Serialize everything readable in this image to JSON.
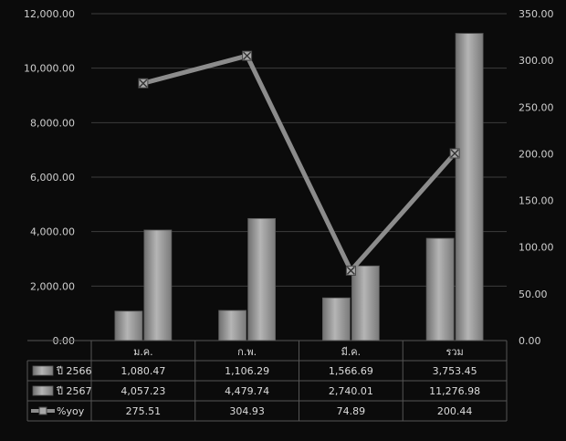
{
  "chart_data": {
    "type": "bar",
    "title": "",
    "categories": [
      "ม.ค.",
      "ก.พ.",
      "มี.ค.",
      "รวม"
    ],
    "y_left": {
      "ticks": [
        "0.00",
        "2,000.00",
        "4,000.00",
        "6,000.00",
        "8,000.00",
        "10,000.00",
        "12,000.00"
      ],
      "ylim": [
        0,
        12000
      ]
    },
    "y_right": {
      "ticks": [
        "0.00",
        "50.00",
        "100.00",
        "150.00",
        "200.00",
        "250.00",
        "300.00",
        "350.00"
      ],
      "ylim": [
        0,
        350
      ]
    },
    "grid": true,
    "series": [
      {
        "name": "ปี 2566",
        "type": "bar",
        "axis": "left",
        "values": [
          1080.47,
          1106.29,
          1566.69,
          3753.45
        ],
        "labels": [
          "1,080.47",
          "1,106.29",
          "1,566.69",
          "3,753.45"
        ]
      },
      {
        "name": "ปี 2567",
        "type": "bar",
        "axis": "left",
        "values": [
          4057.23,
          4479.74,
          2740.01,
          11276.98
        ],
        "labels": [
          "4,057.23",
          "4,479.74",
          "2,740.01",
          "11,276.98"
        ]
      },
      {
        "name": "%yoy",
        "type": "line",
        "axis": "right",
        "values": [
          275.51,
          304.93,
          74.89,
          200.44
        ],
        "labels": [
          "275.51",
          "304.93",
          "74.89",
          "200.44"
        ]
      }
    ],
    "legend": "table-bottom"
  },
  "colors": {
    "background": "#0b0b0b",
    "bar": "#9a9a9a",
    "line": "#8c8c8c",
    "grid": "#3c3c3c",
    "text": "#d8d8d8"
  }
}
